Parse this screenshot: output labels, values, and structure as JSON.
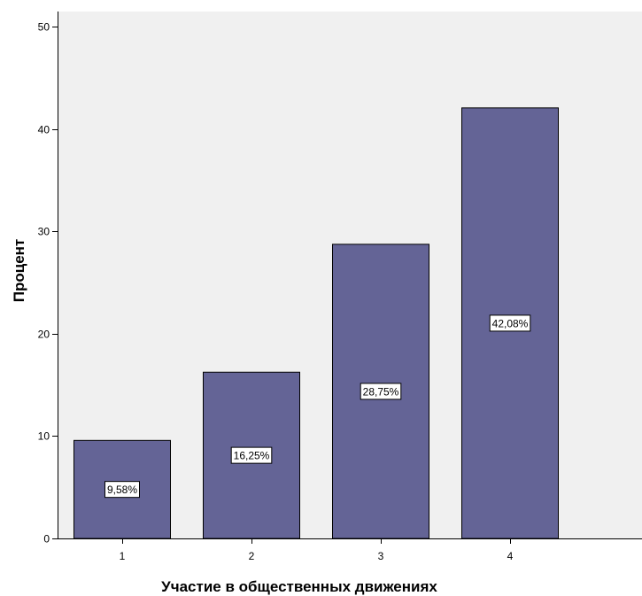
{
  "chart_data": {
    "type": "bar",
    "categories": [
      "1",
      "2",
      "3",
      "4"
    ],
    "values": [
      9.58,
      16.25,
      28.75,
      42.08
    ],
    "data_labels": [
      "9,58%",
      "16,25%",
      "28,75%",
      "42,08%"
    ],
    "xlabel": "Участие в общественных движениях",
    "ylabel": "Процент",
    "ylim": [
      0,
      51.5
    ],
    "yticks": [
      0,
      10,
      20,
      30,
      40,
      50
    ],
    "ytick_labels": [
      "0",
      "10",
      "20",
      "30",
      "40",
      "50"
    ],
    "grid": false,
    "colors": {
      "bar_fill": "#646496",
      "bar_stroke": "#000000",
      "plot_background": "#f0f0f0"
    }
  }
}
